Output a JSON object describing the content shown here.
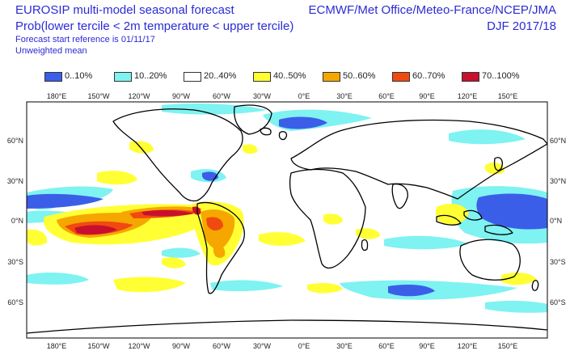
{
  "header": {
    "title_line1": "EUROSIP multi-model seasonal forecast",
    "title_line2": "Prob(lower tercile < 2m temperature < upper tercile)",
    "sub_line1": "Forecast start reference is 01/11/17",
    "sub_line2": "Unweighted mean",
    "right_line1": "ECMWF/Met Office/Meteo-France/NCEP/JMA",
    "right_line2": "DJF 2017/18"
  },
  "legend": [
    {
      "label": "0..10%",
      "color": "#3b5ee8"
    },
    {
      "label": "10..20%",
      "color": "#7ff2f2"
    },
    {
      "label": "20..40%",
      "color": "#ffffff"
    },
    {
      "label": "40..50%",
      "color": "#ffff33"
    },
    {
      "label": "50..60%",
      "color": "#f5a700"
    },
    {
      "label": "60..70%",
      "color": "#f04a10"
    },
    {
      "label": "70..100%",
      "color": "#c8102e"
    }
  ],
  "axes": {
    "lon_labels": [
      "180°E",
      "150°W",
      "120°W",
      "90°W",
      "60°W",
      "30°W",
      "0°E",
      "30°E",
      "60°E",
      "90°E",
      "120°E",
      "150°E"
    ],
    "lat_labels": [
      "60°N",
      "30°N",
      "0°N",
      "30°S",
      "60°S"
    ]
  }
}
